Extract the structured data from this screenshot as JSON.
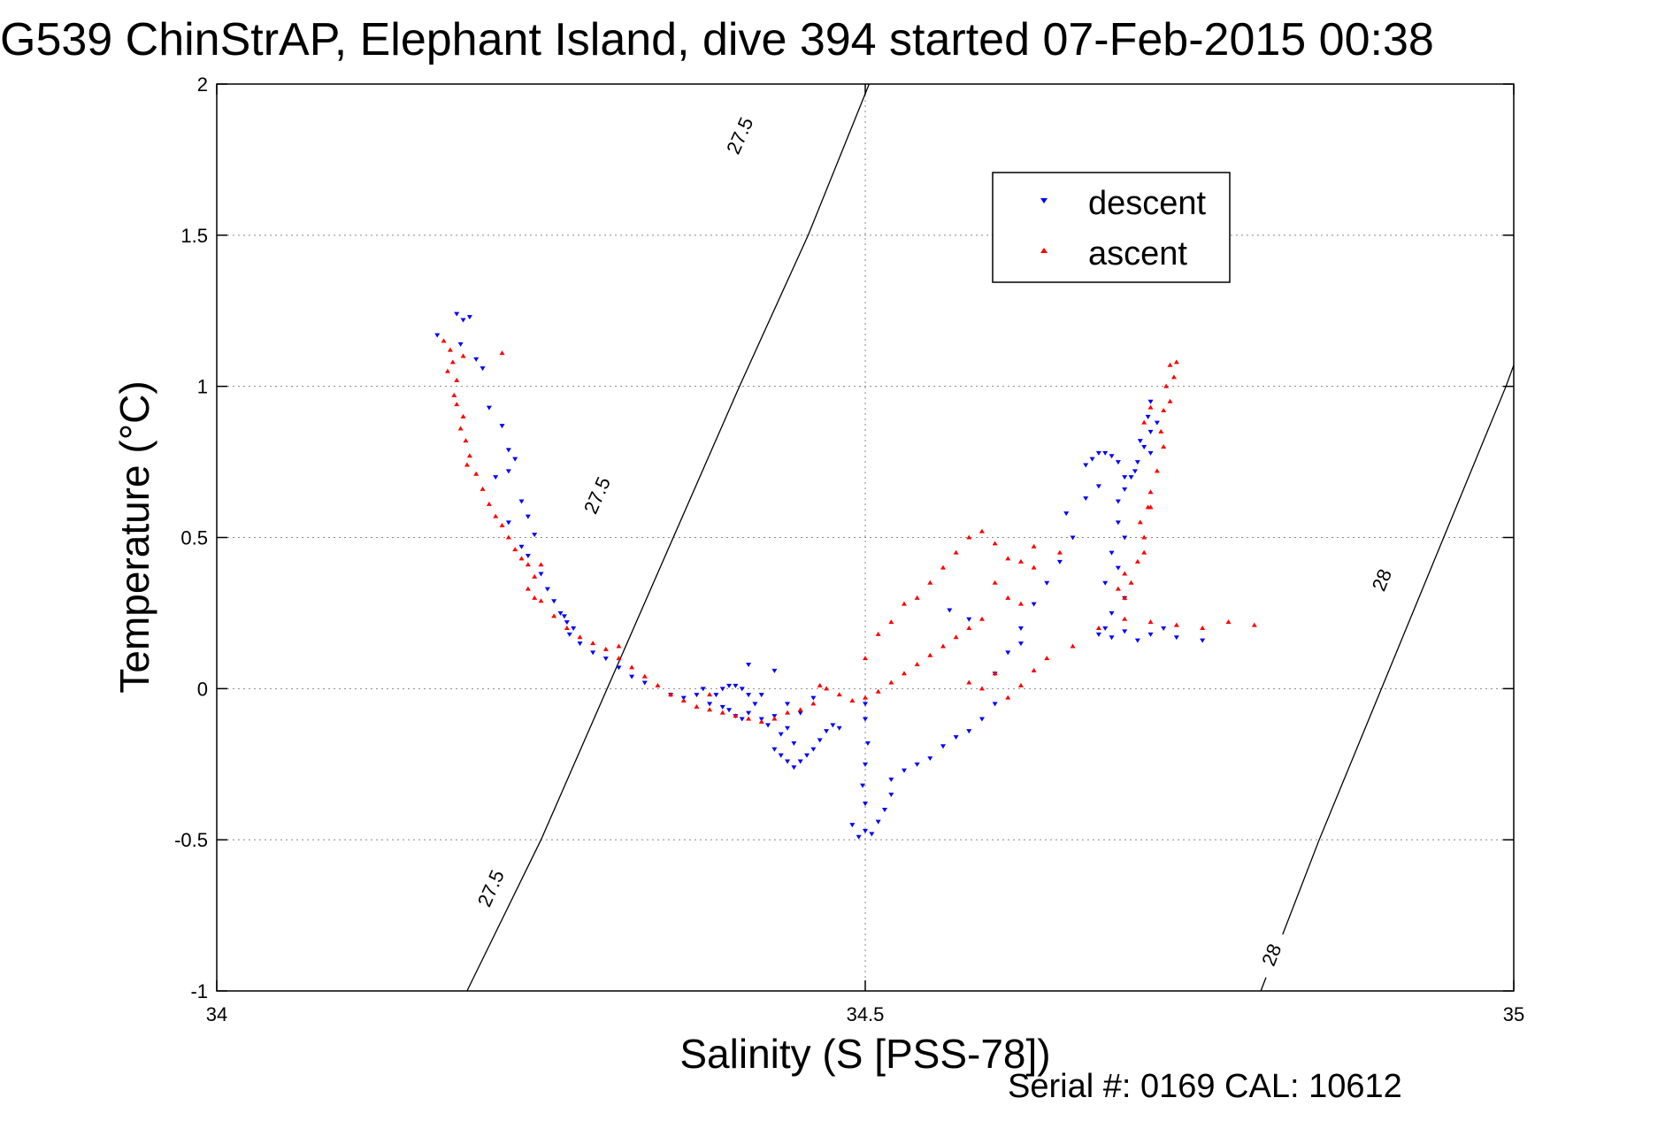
{
  "chart_data": {
    "type": "scatter",
    "title": "G539 ChinStrAP, Elephant Island, dive 394 started 07-Feb-2015 00:38",
    "xlabel": "Salinity (S [PSS-78])",
    "ylabel": "Temperature (°C)",
    "xlim": [
      34,
      35
    ],
    "ylim": [
      -1,
      2
    ],
    "xticks": [
      34,
      34.5,
      35
    ],
    "yticks": [
      -1,
      -0.5,
      0,
      0.5,
      1,
      1.5,
      2
    ],
    "xtick_labels": [
      "34",
      "34.5",
      "35"
    ],
    "ytick_labels": [
      "-1",
      "-0.5",
      "0",
      "0.5",
      "1",
      "1.5",
      "2"
    ],
    "grid": true,
    "legend_position": "top-right",
    "footnote": "Serial #: 0169 CAL: 10612",
    "contours": [
      {
        "label": "27.5",
        "points": [
          [
            34.193,
            -1.0
          ],
          [
            34.25,
            -0.5
          ],
          [
            34.301,
            0.0
          ],
          [
            34.352,
            0.5
          ],
          [
            34.403,
            1.0
          ],
          [
            34.456,
            1.5
          ],
          [
            34.503,
            2.0
          ]
        ],
        "label_positions": [
          [
            34.211,
            -0.66
          ],
          [
            34.293,
            0.64
          ],
          [
            34.403,
            1.83
          ]
        ]
      },
      {
        "label": "28",
        "points": [
          [
            34.805,
            -1.0
          ],
          [
            34.85,
            -0.5
          ],
          [
            34.898,
            0.0
          ],
          [
            34.946,
            0.5
          ],
          [
            34.994,
            1.0
          ],
          [
            35.0,
            1.07
          ]
        ],
        "label_positions": [
          [
            34.813,
            -0.88
          ],
          [
            34.898,
            0.36
          ]
        ]
      }
    ],
    "series": [
      {
        "name": "descent",
        "color": "#0000ff",
        "marker": "triangle-down",
        "points": [
          [
            34.185,
            1.24
          ],
          [
            34.195,
            1.23
          ],
          [
            34.19,
            1.22
          ],
          [
            34.188,
            1.14
          ],
          [
            34.2,
            1.09
          ],
          [
            34.17,
            1.17
          ],
          [
            34.205,
            1.06
          ],
          [
            34.21,
            0.93
          ],
          [
            34.22,
            0.87
          ],
          [
            34.225,
            0.79
          ],
          [
            34.215,
            0.7
          ],
          [
            34.23,
            0.76
          ],
          [
            34.225,
            0.72
          ],
          [
            34.235,
            0.62
          ],
          [
            34.24,
            0.57
          ],
          [
            34.225,
            0.55
          ],
          [
            34.245,
            0.51
          ],
          [
            34.235,
            0.47
          ],
          [
            34.24,
            0.44
          ],
          [
            34.25,
            0.38
          ],
          [
            34.255,
            0.33
          ],
          [
            34.26,
            0.29
          ],
          [
            34.265,
            0.25
          ],
          [
            34.27,
            0.22
          ],
          [
            34.275,
            0.2
          ],
          [
            34.268,
            0.24
          ],
          [
            34.272,
            0.18
          ],
          [
            34.28,
            0.15
          ],
          [
            34.29,
            0.12
          ],
          [
            34.3,
            0.1
          ],
          [
            34.31,
            0.07
          ],
          [
            34.32,
            0.04
          ],
          [
            34.33,
            0.02
          ],
          [
            34.35,
            -0.02
          ],
          [
            34.36,
            -0.03
          ],
          [
            34.37,
            -0.02
          ],
          [
            34.375,
            0.0
          ],
          [
            34.38,
            -0.05
          ],
          [
            34.385,
            -0.02
          ],
          [
            34.39,
            0.0
          ],
          [
            34.395,
            0.01
          ],
          [
            34.4,
            0.01
          ],
          [
            34.405,
            0.0
          ],
          [
            34.41,
            -0.02
          ],
          [
            34.415,
            -0.05
          ],
          [
            34.41,
            -0.08
          ],
          [
            34.405,
            -0.1
          ],
          [
            34.4,
            -0.09
          ],
          [
            34.395,
            -0.07
          ],
          [
            34.39,
            -0.06
          ],
          [
            34.42,
            -0.1
          ],
          [
            34.425,
            -0.12
          ],
          [
            34.43,
            -0.09
          ],
          [
            34.435,
            -0.15
          ],
          [
            34.44,
            -0.13
          ],
          [
            34.445,
            -0.18
          ],
          [
            34.43,
            -0.2
          ],
          [
            34.435,
            -0.22
          ],
          [
            34.44,
            -0.24
          ],
          [
            34.445,
            -0.26
          ],
          [
            34.45,
            -0.24
          ],
          [
            34.455,
            -0.22
          ],
          [
            34.46,
            -0.2
          ],
          [
            34.465,
            -0.17
          ],
          [
            34.47,
            -0.14
          ],
          [
            34.475,
            -0.12
          ],
          [
            34.48,
            -0.13
          ],
          [
            34.42,
            -0.02
          ],
          [
            34.41,
            0.08
          ],
          [
            34.43,
            0.06
          ],
          [
            34.44,
            -0.05
          ],
          [
            34.45,
            -0.08
          ],
          [
            34.46,
            -0.03
          ],
          [
            34.49,
            -0.45
          ],
          [
            34.5,
            -0.47
          ],
          [
            34.495,
            -0.49
          ],
          [
            34.505,
            -0.48
          ],
          [
            34.51,
            -0.44
          ],
          [
            34.515,
            -0.4
          ],
          [
            34.52,
            -0.35
          ],
          [
            34.5,
            -0.38
          ],
          [
            34.498,
            -0.32
          ],
          [
            34.5,
            -0.25
          ],
          [
            34.502,
            -0.18
          ],
          [
            34.5,
            -0.1
          ],
          [
            34.5,
            -0.05
          ],
          [
            34.52,
            -0.3
          ],
          [
            34.53,
            -0.27
          ],
          [
            34.54,
            -0.25
          ],
          [
            34.55,
            -0.23
          ],
          [
            34.56,
            -0.19
          ],
          [
            34.57,
            -0.16
          ],
          [
            34.58,
            -0.14
          ],
          [
            34.59,
            -0.1
          ],
          [
            34.6,
            -0.05
          ],
          [
            34.6,
            0.05
          ],
          [
            34.61,
            0.12
          ],
          [
            34.62,
            0.2
          ],
          [
            34.63,
            0.28
          ],
          [
            34.64,
            0.35
          ],
          [
            34.65,
            0.42
          ],
          [
            34.66,
            0.5
          ],
          [
            34.62,
            0.15
          ],
          [
            34.58,
            0.23
          ],
          [
            34.565,
            0.26
          ],
          [
            34.67,
            0.63
          ],
          [
            34.68,
            0.67
          ],
          [
            34.655,
            0.58
          ],
          [
            34.67,
            0.74
          ],
          [
            34.675,
            0.76
          ],
          [
            34.68,
            0.78
          ],
          [
            34.685,
            0.78
          ],
          [
            34.69,
            0.77
          ],
          [
            34.695,
            0.75
          ],
          [
            34.7,
            0.7
          ],
          [
            34.695,
            0.55
          ],
          [
            34.7,
            0.5
          ],
          [
            34.69,
            0.45
          ],
          [
            34.695,
            0.4
          ],
          [
            34.685,
            0.35
          ],
          [
            34.7,
            0.3
          ],
          [
            34.69,
            0.25
          ],
          [
            34.685,
            0.2
          ],
          [
            34.68,
            0.18
          ],
          [
            34.69,
            0.17
          ],
          [
            34.7,
            0.19
          ],
          [
            34.71,
            0.16
          ],
          [
            34.72,
            0.18
          ],
          [
            34.73,
            0.2
          ],
          [
            34.74,
            0.17
          ],
          [
            34.76,
            0.16
          ],
          [
            34.695,
            0.62
          ],
          [
            34.7,
            0.66
          ],
          [
            34.705,
            0.7
          ],
          [
            34.71,
            0.75
          ],
          [
            34.715,
            0.8
          ],
          [
            34.72,
            0.85
          ],
          [
            34.718,
            0.9
          ],
          [
            34.712,
            0.82
          ],
          [
            34.708,
            0.72
          ],
          [
            34.72,
            0.78
          ],
          [
            34.725,
            0.88
          ],
          [
            34.72,
            0.95
          ]
        ]
      },
      {
        "name": "ascent",
        "color": "#ff0000",
        "marker": "triangle-up",
        "points": [
          [
            34.175,
            1.15
          ],
          [
            34.18,
            1.12
          ],
          [
            34.182,
            1.08
          ],
          [
            34.178,
            1.05
          ],
          [
            34.185,
            1.02
          ],
          [
            34.183,
            0.97
          ],
          [
            34.185,
            0.94
          ],
          [
            34.19,
            0.9
          ],
          [
            34.188,
            0.86
          ],
          [
            34.192,
            0.82
          ],
          [
            34.195,
            0.77
          ],
          [
            34.193,
            0.74
          ],
          [
            34.2,
            0.71
          ],
          [
            34.205,
            0.66
          ],
          [
            34.21,
            0.61
          ],
          [
            34.215,
            0.57
          ],
          [
            34.22,
            0.54
          ],
          [
            34.225,
            0.5
          ],
          [
            34.23,
            0.46
          ],
          [
            34.235,
            0.43
          ],
          [
            34.24,
            0.41
          ],
          [
            34.245,
            0.37
          ],
          [
            34.24,
            0.33
          ],
          [
            34.245,
            0.3
          ],
          [
            34.25,
            0.29
          ],
          [
            34.26,
            0.24
          ],
          [
            34.27,
            0.2
          ],
          [
            34.28,
            0.17
          ],
          [
            34.29,
            0.15
          ],
          [
            34.3,
            0.13
          ],
          [
            34.31,
            0.1
          ],
          [
            34.32,
            0.07
          ],
          [
            34.33,
            0.04
          ],
          [
            34.34,
            0.01
          ],
          [
            34.35,
            -0.02
          ],
          [
            34.36,
            -0.04
          ],
          [
            34.37,
            -0.06
          ],
          [
            34.38,
            -0.07
          ],
          [
            34.39,
            -0.08
          ],
          [
            34.4,
            -0.09
          ],
          [
            34.41,
            -0.1
          ],
          [
            34.42,
            -0.11
          ],
          [
            34.43,
            -0.1
          ],
          [
            34.44,
            -0.08
          ],
          [
            34.45,
            -0.07
          ],
          [
            34.46,
            -0.05
          ],
          [
            34.465,
            0.01
          ],
          [
            34.47,
            0.0
          ],
          [
            34.48,
            -0.02
          ],
          [
            34.49,
            -0.04
          ],
          [
            34.5,
            -0.03
          ],
          [
            34.51,
            -0.01
          ],
          [
            34.52,
            0.02
          ],
          [
            34.53,
            0.05
          ],
          [
            34.54,
            0.08
          ],
          [
            34.55,
            0.11
          ],
          [
            34.56,
            0.14
          ],
          [
            34.57,
            0.17
          ],
          [
            34.58,
            0.2
          ],
          [
            34.59,
            0.23
          ],
          [
            34.5,
            0.1
          ],
          [
            34.51,
            0.18
          ],
          [
            34.52,
            0.22
          ],
          [
            34.53,
            0.28
          ],
          [
            34.54,
            0.3
          ],
          [
            34.55,
            0.35
          ],
          [
            34.56,
            0.4
          ],
          [
            34.57,
            0.45
          ],
          [
            34.58,
            0.5
          ],
          [
            34.59,
            0.52
          ],
          [
            34.6,
            0.48
          ],
          [
            34.61,
            0.43
          ],
          [
            34.62,
            0.42
          ],
          [
            34.63,
            0.4
          ],
          [
            34.6,
            0.35
          ],
          [
            34.61,
            0.3
          ],
          [
            34.62,
            0.28
          ],
          [
            34.58,
            0.02
          ],
          [
            34.59,
            0.0
          ],
          [
            34.6,
            0.05
          ],
          [
            34.61,
            -0.03
          ],
          [
            34.62,
            0.01
          ],
          [
            34.63,
            0.06
          ],
          [
            34.64,
            0.1
          ],
          [
            34.66,
            0.14
          ],
          [
            34.68,
            0.2
          ],
          [
            34.7,
            0.23
          ],
          [
            34.72,
            0.22
          ],
          [
            34.74,
            0.21
          ],
          [
            34.76,
            0.2
          ],
          [
            34.78,
            0.22
          ],
          [
            34.8,
            0.21
          ],
          [
            34.7,
            0.3
          ],
          [
            34.705,
            0.35
          ],
          [
            34.71,
            0.42
          ],
          [
            34.715,
            0.5
          ],
          [
            34.712,
            0.55
          ],
          [
            34.718,
            0.6
          ],
          [
            34.72,
            0.65
          ],
          [
            34.725,
            0.72
          ],
          [
            34.73,
            0.8
          ],
          [
            34.728,
            0.85
          ],
          [
            34.73,
            0.92
          ],
          [
            34.735,
            0.95
          ],
          [
            34.732,
            1.0
          ],
          [
            34.738,
            1.03
          ],
          [
            34.735,
            1.07
          ],
          [
            34.74,
            1.08
          ],
          [
            34.72,
            0.93
          ],
          [
            34.715,
            0.88
          ],
          [
            34.72,
            0.6
          ],
          [
            34.715,
            0.45
          ],
          [
            34.7,
            0.38
          ],
          [
            34.695,
            0.33
          ],
          [
            34.65,
            0.45
          ],
          [
            34.63,
            0.47
          ],
          [
            34.22,
            1.11
          ],
          [
            34.19,
            1.1
          ],
          [
            34.25,
            0.41
          ],
          [
            34.31,
            0.14
          ],
          [
            34.38,
            -0.02
          ]
        ]
      }
    ]
  }
}
